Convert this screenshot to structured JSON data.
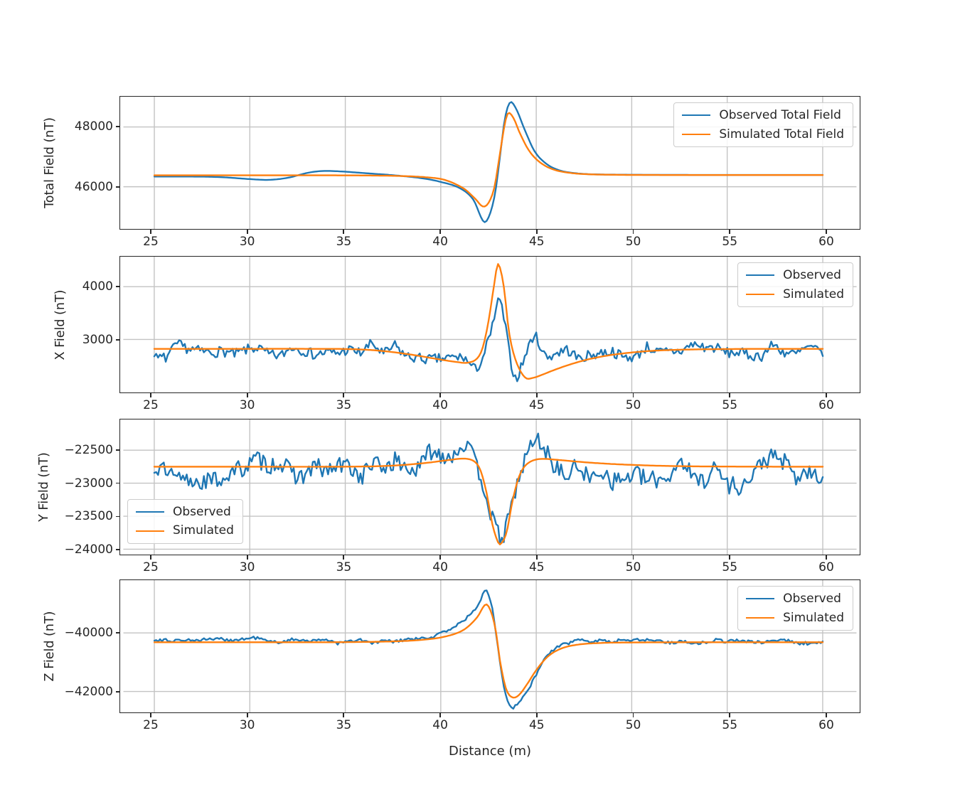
{
  "figure": {
    "background": "#ffffff",
    "xlabel": "Distance (m)"
  },
  "colors": {
    "observed": "#1f77b4",
    "simulated": "#ff7f0e",
    "grid": "#c3c3c3",
    "spine": "#262626",
    "text": "#262626",
    "legend_border": "#cccccc"
  },
  "axes": {
    "xlim": [
      23.38,
      61.77
    ],
    "xticks": [
      25,
      30,
      35,
      40,
      45,
      50,
      55,
      60
    ],
    "grid": true
  },
  "chart_data": [
    {
      "type": "line",
      "ylabel": "Total Field (nT)",
      "ylim": [
        44588,
        49011
      ],
      "yticks": [
        46000,
        48000
      ],
      "legend": {
        "position": "upper-right",
        "entries": [
          "Observed Total Field",
          "Simulated Total Field"
        ]
      },
      "series": [
        {
          "name": "Observed Total Field",
          "color_key": "observed",
          "noise_amp": 0,
          "seed": 1,
          "keypoints": [
            [
              25,
              46340
            ],
            [
              27,
              46340
            ],
            [
              28.5,
              46320
            ],
            [
              30,
              46255
            ],
            [
              31,
              46230
            ],
            [
              32,
              46300
            ],
            [
              33,
              46460
            ],
            [
              33.8,
              46525
            ],
            [
              34.8,
              46510
            ],
            [
              36,
              46455
            ],
            [
              37.5,
              46385
            ],
            [
              39,
              46285
            ],
            [
              40,
              46160
            ],
            [
              41,
              45950
            ],
            [
              41.7,
              45570
            ],
            [
              42.25,
              44830
            ],
            [
              42.55,
              45050
            ],
            [
              42.85,
              45800
            ],
            [
              43.1,
              47000
            ],
            [
              43.35,
              48250
            ],
            [
              43.63,
              48820
            ],
            [
              43.95,
              48600
            ],
            [
              44.4,
              47900
            ],
            [
              44.9,
              47200
            ],
            [
              45.5,
              46780
            ],
            [
              46.2,
              46550
            ],
            [
              47,
              46455
            ],
            [
              48,
              46415
            ],
            [
              50,
              46400
            ],
            [
              53,
              46396
            ],
            [
              56,
              46396
            ],
            [
              60,
              46396
            ]
          ]
        },
        {
          "name": "Simulated Total Field",
          "color_key": "simulated",
          "noise_amp": 0,
          "seed": 0,
          "keypoints": [
            [
              25,
              46380
            ],
            [
              30,
              46380
            ],
            [
              34,
              46380
            ],
            [
              36.5,
              46374
            ],
            [
              38,
              46356
            ],
            [
              39.2,
              46318
            ],
            [
              40.2,
              46230
            ],
            [
              41.2,
              45940
            ],
            [
              41.8,
              45600
            ],
            [
              42.2,
              45340
            ],
            [
              42.5,
              45460
            ],
            [
              42.8,
              45960
            ],
            [
              43.05,
              46900
            ],
            [
              43.3,
              47920
            ],
            [
              43.5,
              48440
            ],
            [
              43.78,
              48330
            ],
            [
              44.15,
              47780
            ],
            [
              44.65,
              47180
            ],
            [
              45.25,
              46790
            ],
            [
              45.95,
              46565
            ],
            [
              46.8,
              46460
            ],
            [
              47.8,
              46415
            ],
            [
              49,
              46400
            ],
            [
              51,
              46392
            ],
            [
              55,
              46390
            ],
            [
              60,
              46390
            ]
          ]
        }
      ]
    },
    {
      "type": "line",
      "ylabel": "X Field (nT)",
      "ylim": [
        1996,
        4569
      ],
      "yticks": [
        3000,
        4000
      ],
      "legend": {
        "position": "upper-right",
        "entries": [
          "Observed",
          "Simulated"
        ]
      },
      "series": [
        {
          "name": "Observed",
          "color_key": "observed",
          "noise_amp": 200,
          "seed": 7,
          "keypoints": [
            [
              25,
              2780
            ],
            [
              27,
              2770
            ],
            [
              29,
              2790
            ],
            [
              31,
              2780
            ],
            [
              33,
              2790
            ],
            [
              35,
              2800
            ],
            [
              37,
              2790
            ],
            [
              38.5,
              2755
            ],
            [
              40,
              2690
            ],
            [
              41,
              2610
            ],
            [
              41.8,
              2550
            ],
            [
              42.2,
              2620
            ],
            [
              42.6,
              3000
            ],
            [
              42.9,
              3560
            ],
            [
              43.1,
              3700
            ],
            [
              43.35,
              3280
            ],
            [
              43.6,
              2700
            ],
            [
              43.9,
              2230
            ],
            [
              44.2,
              2420
            ],
            [
              44.6,
              2760
            ],
            [
              44.95,
              2950
            ],
            [
              45.5,
              2640
            ],
            [
              46,
              2620
            ],
            [
              46.6,
              2720
            ],
            [
              47.5,
              2780
            ],
            [
              49,
              2790
            ],
            [
              51,
              2790
            ],
            [
              53,
              2790
            ],
            [
              55,
              2795
            ],
            [
              57.5,
              2795
            ],
            [
              60,
              2830
            ]
          ]
        },
        {
          "name": "Simulated",
          "color_key": "simulated",
          "noise_amp": 0,
          "seed": 0,
          "keypoints": [
            [
              25,
              2823
            ],
            [
              30,
              2823
            ],
            [
              33,
              2823
            ],
            [
              35.5,
              2815
            ],
            [
              37,
              2780
            ],
            [
              38.5,
              2710
            ],
            [
              39.8,
              2630
            ],
            [
              40.8,
              2575
            ],
            [
              41.4,
              2560
            ],
            [
              41.9,
              2640
            ],
            [
              42.2,
              2850
            ],
            [
              42.5,
              3350
            ],
            [
              42.8,
              4050
            ],
            [
              43,
              4430
            ],
            [
              43.3,
              4000
            ],
            [
              43.55,
              3200
            ],
            [
              43.8,
              2750
            ],
            [
              44.1,
              2450
            ],
            [
              44.45,
              2270
            ],
            [
              44.8,
              2270
            ],
            [
              45.3,
              2330
            ],
            [
              46,
              2430
            ],
            [
              46.8,
              2530
            ],
            [
              47.8,
              2630
            ],
            [
              49,
              2710
            ],
            [
              50.5,
              2770
            ],
            [
              52,
              2800
            ],
            [
              54,
              2815
            ],
            [
              57,
              2822
            ],
            [
              60,
              2823
            ]
          ]
        }
      ]
    },
    {
      "type": "line",
      "ylabel": "Y Field (nT)",
      "ylim": [
        -24082,
        -22034
      ],
      "yticks": [
        -24000,
        -23500,
        -23000,
        -22500
      ],
      "legend": {
        "position": "lower-left",
        "entries": [
          "Observed",
          "Simulated"
        ]
      },
      "series": [
        {
          "name": "Observed",
          "color_key": "observed",
          "noise_amp": 280,
          "seed": 13,
          "keypoints": [
            [
              25,
              -22770
            ],
            [
              27,
              -22790
            ],
            [
              29,
              -22760
            ],
            [
              31,
              -22790
            ],
            [
              33,
              -22765
            ],
            [
              35,
              -22775
            ],
            [
              37,
              -22740
            ],
            [
              38.5,
              -22680
            ],
            [
              39.8,
              -22550
            ],
            [
              40.8,
              -22390
            ],
            [
              41.3,
              -22330
            ],
            [
              41.8,
              -22520
            ],
            [
              42.3,
              -22920
            ],
            [
              42.7,
              -23420
            ],
            [
              43.1,
              -23760
            ],
            [
              43.35,
              -23800
            ],
            [
              43.65,
              -23580
            ],
            [
              43.95,
              -23080
            ],
            [
              44.35,
              -22690
            ],
            [
              44.85,
              -22440
            ],
            [
              45.3,
              -22330
            ],
            [
              45.85,
              -22620
            ],
            [
              46.5,
              -22810
            ],
            [
              47.5,
              -22780
            ],
            [
              49,
              -22805
            ],
            [
              51,
              -22815
            ],
            [
              53,
              -22780
            ],
            [
              55.5,
              -22890
            ],
            [
              57.5,
              -22795
            ],
            [
              60,
              -22785
            ]
          ]
        },
        {
          "name": "Simulated",
          "color_key": "simulated",
          "noise_amp": 0,
          "seed": 0,
          "keypoints": [
            [
              25,
              -22750
            ],
            [
              30,
              -22750
            ],
            [
              34,
              -22750
            ],
            [
              36.5,
              -22744
            ],
            [
              38,
              -22724
            ],
            [
              39.3,
              -22690
            ],
            [
              40.4,
              -22650
            ],
            [
              41.3,
              -22628
            ],
            [
              41.8,
              -22680
            ],
            [
              42.1,
              -22820
            ],
            [
              42.4,
              -23150
            ],
            [
              42.7,
              -23620
            ],
            [
              43,
              -23895
            ],
            [
              43.15,
              -23920
            ],
            [
              43.45,
              -23740
            ],
            [
              43.75,
              -23280
            ],
            [
              44.05,
              -22940
            ],
            [
              44.35,
              -22760
            ],
            [
              44.75,
              -22665
            ],
            [
              45.25,
              -22632
            ],
            [
              45.95,
              -22642
            ],
            [
              46.8,
              -22664
            ],
            [
              48,
              -22692
            ],
            [
              49.5,
              -22716
            ],
            [
              51.5,
              -22736
            ],
            [
              54,
              -22746
            ],
            [
              57,
              -22749
            ],
            [
              60,
              -22750
            ]
          ]
        }
      ]
    },
    {
      "type": "line",
      "ylabel": "Z Field (nT)",
      "ylim": [
        -42713,
        -38200
      ],
      "yticks": [
        -42000,
        -40000
      ],
      "legend": {
        "position": "upper-right",
        "entries": [
          "Observed",
          "Simulated"
        ]
      },
      "series": [
        {
          "name": "Observed",
          "color_key": "observed",
          "noise_amp": 110,
          "seed": 21,
          "keypoints": [
            [
              25,
              -40265
            ],
            [
              26.8,
              -40220
            ],
            [
              28.5,
              -40270
            ],
            [
              30,
              -40190
            ],
            [
              31.5,
              -40280
            ],
            [
              33,
              -40210
            ],
            [
              34.5,
              -40300
            ],
            [
              36,
              -40290
            ],
            [
              37.5,
              -40260
            ],
            [
              38.8,
              -40190
            ],
            [
              40,
              -40030
            ],
            [
              41,
              -39720
            ],
            [
              41.8,
              -39230
            ],
            [
              42.2,
              -38720
            ],
            [
              42.4,
              -38560
            ],
            [
              42.7,
              -39120
            ],
            [
              43,
              -40450
            ],
            [
              43.3,
              -41780
            ],
            [
              43.6,
              -42390
            ],
            [
              43.85,
              -42510
            ],
            [
              44.25,
              -42230
            ],
            [
              44.7,
              -41760
            ],
            [
              45.2,
              -41160
            ],
            [
              45.7,
              -40690
            ],
            [
              46.3,
              -40420
            ],
            [
              47,
              -40310
            ],
            [
              48.5,
              -40285
            ],
            [
              51,
              -40285
            ],
            [
              54,
              -40275
            ],
            [
              57,
              -40285
            ],
            [
              60,
              -40280
            ]
          ]
        },
        {
          "name": "Simulated",
          "color_key": "simulated",
          "noise_amp": 0,
          "seed": 0,
          "keypoints": [
            [
              25,
              -40320
            ],
            [
              30,
              -40320
            ],
            [
              34,
              -40317
            ],
            [
              36,
              -40308
            ],
            [
              37.5,
              -40288
            ],
            [
              39,
              -40238
            ],
            [
              40.2,
              -40128
            ],
            [
              41.2,
              -39895
            ],
            [
              41.9,
              -39470
            ],
            [
              42.35,
              -39030
            ],
            [
              42.62,
              -39260
            ],
            [
              42.88,
              -39920
            ],
            [
              43.12,
              -41020
            ],
            [
              43.42,
              -41910
            ],
            [
              43.75,
              -42200
            ],
            [
              44.1,
              -42115
            ],
            [
              44.5,
              -41770
            ],
            [
              45,
              -41270
            ],
            [
              45.6,
              -40810
            ],
            [
              46.3,
              -40535
            ],
            [
              47.2,
              -40398
            ],
            [
              48.5,
              -40340
            ],
            [
              50,
              -40326
            ],
            [
              53,
              -40320
            ],
            [
              57,
              -40320
            ],
            [
              60,
              -40320
            ]
          ]
        }
      ]
    }
  ]
}
